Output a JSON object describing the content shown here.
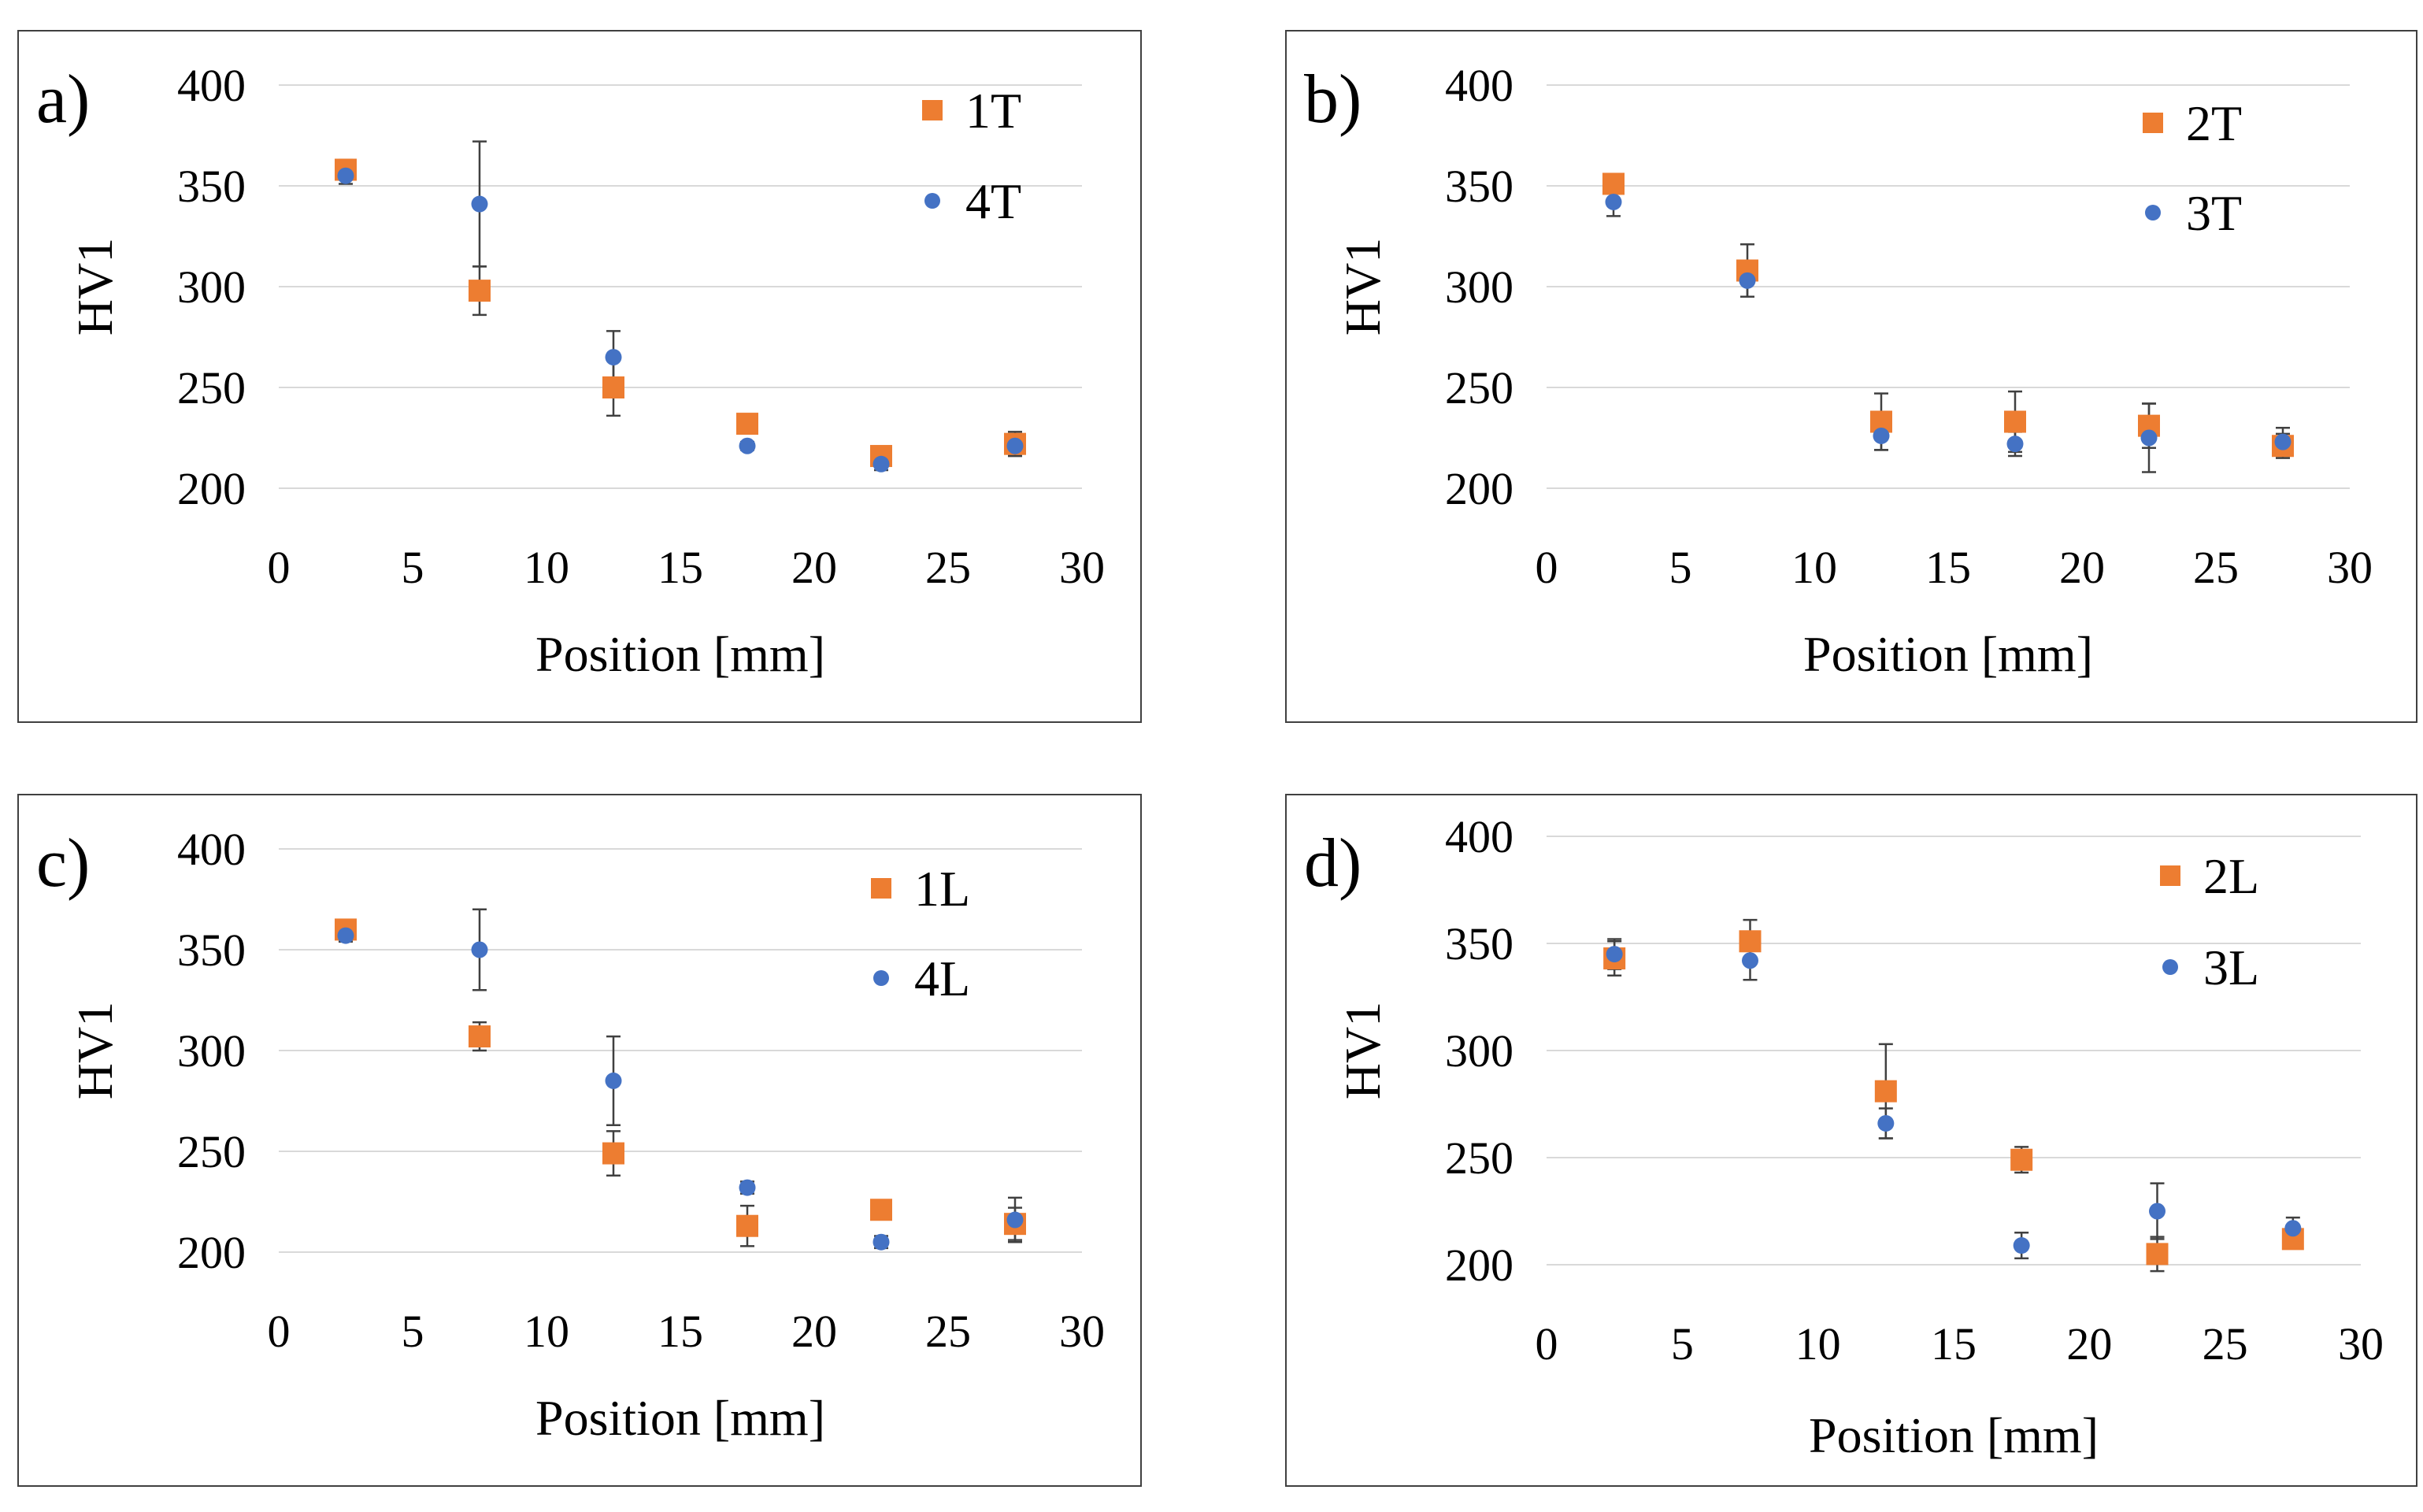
{
  "colors": {
    "series_square": "#ED7D31",
    "series_circle": "#4472C4",
    "error_bar": "#404040",
    "grid": "#D9D9D9"
  },
  "chart_data": [
    {
      "type": "scatter",
      "panel_label": "a)",
      "xlabel": "Position [mm]",
      "ylabel": "HV1",
      "xlim": [
        0,
        30
      ],
      "ylim": [
        200,
        400
      ],
      "x_ticks": [
        "0",
        "5",
        "10",
        "15",
        "20",
        "25",
        "30"
      ],
      "y_ticks": [
        "200",
        "250",
        "300",
        "350",
        "400"
      ],
      "legend_position": "top-right",
      "series": [
        {
          "name": "1T",
          "marker": "square",
          "color": "#ED7D31",
          "x": [
            2.5,
            7.5,
            12.5,
            17.5,
            22.5,
            27.5
          ],
          "y": [
            358,
            298,
            250,
            232,
            216,
            222
          ],
          "err": [
            5,
            12,
            14,
            3,
            4,
            6
          ]
        },
        {
          "name": "4T",
          "marker": "circle",
          "color": "#4472C4",
          "x": [
            2.5,
            7.5,
            12.5,
            17.5,
            22.5,
            27.5
          ],
          "y": [
            355,
            341,
            265,
            221,
            212,
            221
          ],
          "err": [
            4,
            31,
            13,
            2,
            3,
            5
          ]
        }
      ]
    },
    {
      "type": "scatter",
      "panel_label": "b)",
      "xlabel": "Position [mm]",
      "ylabel": "HV1",
      "xlim": [
        0,
        30
      ],
      "ylim": [
        200,
        400
      ],
      "x_ticks": [
        "0",
        "5",
        "10",
        "15",
        "20",
        "25",
        "30"
      ],
      "y_ticks": [
        "200",
        "250",
        "300",
        "350",
        "400"
      ],
      "legend_position": "top-right",
      "series": [
        {
          "name": "2T",
          "marker": "square",
          "color": "#ED7D31",
          "x": [
            2.5,
            7.5,
            12.5,
            17.5,
            22.5,
            27.5
          ],
          "y": [
            351,
            308,
            233,
            233,
            231,
            221
          ],
          "err": [
            4,
            13,
            14,
            15,
            11,
            6
          ]
        },
        {
          "name": "3T",
          "marker": "circle",
          "color": "#4472C4",
          "x": [
            2.5,
            7.5,
            12.5,
            17.5,
            22.5,
            27.5
          ],
          "y": [
            342,
            303,
            226,
            222,
            225,
            223
          ],
          "err": [
            7,
            8,
            7,
            6,
            17,
            7
          ]
        }
      ]
    },
    {
      "type": "scatter",
      "panel_label": "c)",
      "xlabel": "Position [mm]",
      "ylabel": "HV1",
      "xlim": [
        0,
        30
      ],
      "ylim": [
        200,
        400
      ],
      "x_ticks": [
        "0",
        "5",
        "10",
        "15",
        "20",
        "25",
        "30"
      ],
      "y_ticks": [
        "200",
        "250",
        "300",
        "350",
        "400"
      ],
      "legend_position": "top-right",
      "series": [
        {
          "name": "1L",
          "marker": "square",
          "color": "#ED7D31",
          "x": [
            2.5,
            7.5,
            12.5,
            17.5,
            22.5,
            27.5
          ],
          "y": [
            360,
            307,
            249,
            213,
            221,
            214
          ],
          "err": [
            3,
            7,
            11,
            10,
            4,
            8
          ]
        },
        {
          "name": "4L",
          "marker": "circle",
          "color": "#4472C4",
          "x": [
            2.5,
            7.5,
            12.5,
            17.5,
            22.5,
            27.5
          ],
          "y": [
            357,
            350,
            285,
            232,
            205,
            216
          ],
          "err": [
            3,
            20,
            22,
            3,
            3,
            11
          ]
        }
      ]
    },
    {
      "type": "scatter",
      "panel_label": "d)",
      "xlabel": "Position [mm]",
      "ylabel": "HV1",
      "xlim": [
        0,
        30
      ],
      "ylim": [
        200,
        400
      ],
      "x_ticks": [
        "0",
        "5",
        "10",
        "15",
        "20",
        "25",
        "30"
      ],
      "y_ticks": [
        "200",
        "250",
        "300",
        "350",
        "400"
      ],
      "legend_position": "top-right",
      "series": [
        {
          "name": "2L",
          "marker": "square",
          "color": "#ED7D31",
          "x": [
            2.5,
            7.5,
            12.5,
            17.5,
            22.5,
            27.5
          ],
          "y": [
            343,
            351,
            281,
            249,
            205,
            212
          ],
          "err": [
            8,
            10,
            22,
            6,
            8,
            4
          ]
        },
        {
          "name": "3L",
          "marker": "circle",
          "color": "#4472C4",
          "x": [
            2.5,
            7.5,
            12.5,
            17.5,
            22.5,
            27.5
          ],
          "y": [
            345,
            342,
            266,
            209,
            225,
            217
          ],
          "err": [
            7,
            9,
            7,
            6,
            13,
            5
          ]
        }
      ]
    }
  ]
}
